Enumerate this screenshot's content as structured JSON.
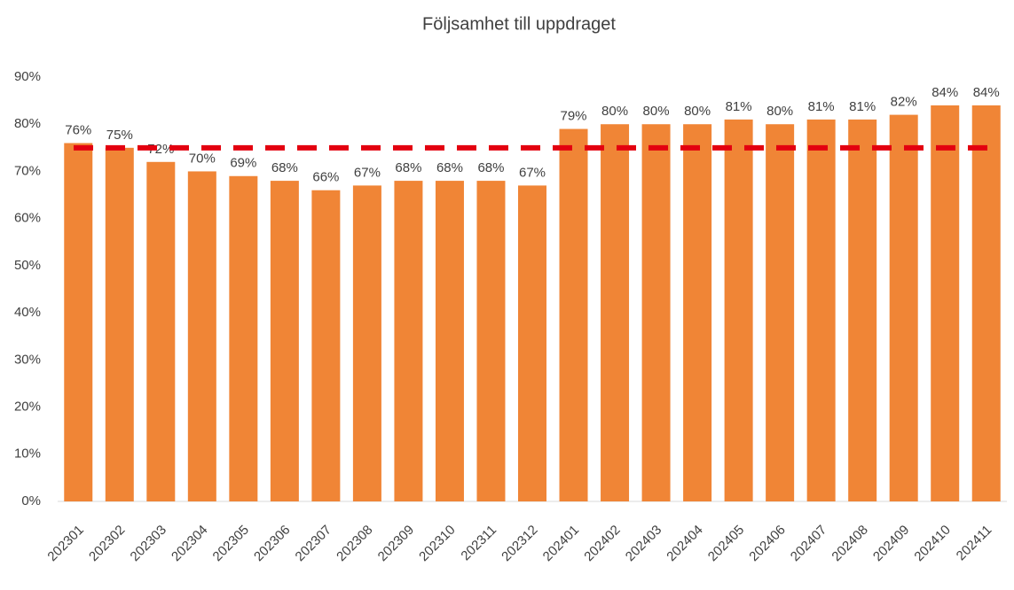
{
  "chart_data": {
    "type": "bar",
    "title": "Följsamhet till uppdraget",
    "categories": [
      "202301",
      "202302",
      "202303",
      "202304",
      "202305",
      "202306",
      "202307",
      "202308",
      "202309",
      "202310",
      "202311",
      "202312",
      "202401",
      "202402",
      "202403",
      "202404",
      "202405",
      "202406",
      "202407",
      "202408",
      "202409",
      "202410",
      "202411"
    ],
    "values": [
      76,
      75,
      72,
      70,
      69,
      68,
      66,
      67,
      68,
      68,
      68,
      67,
      79,
      80,
      80,
      80,
      81,
      80,
      81,
      81,
      82,
      84,
      84
    ],
    "value_labels": [
      "76%",
      "75%",
      "72%",
      "70%",
      "69%",
      "68%",
      "66%",
      "67%",
      "68%",
      "68%",
      "68%",
      "67%",
      "79%",
      "80%",
      "80%",
      "80%",
      "81%",
      "80%",
      "81%",
      "81%",
      "82%",
      "84%",
      "84%"
    ],
    "color": "#f08536",
    "ylim": [
      0,
      90
    ],
    "yticks": [
      {
        "value": 0,
        "label": "0%"
      },
      {
        "value": 10,
        "label": "10%"
      },
      {
        "value": 20,
        "label": "20%"
      },
      {
        "value": 30,
        "label": "30%"
      },
      {
        "value": 40,
        "label": "40%"
      },
      {
        "value": 50,
        "label": "50%"
      },
      {
        "value": 60,
        "label": "60%"
      },
      {
        "value": 70,
        "label": "70%"
      },
      {
        "value": 80,
        "label": "80%"
      },
      {
        "value": 90,
        "label": "90%"
      }
    ],
    "grid": false,
    "reference_line": {
      "value": 75,
      "color": "#e3000f",
      "style": "dashed"
    }
  }
}
